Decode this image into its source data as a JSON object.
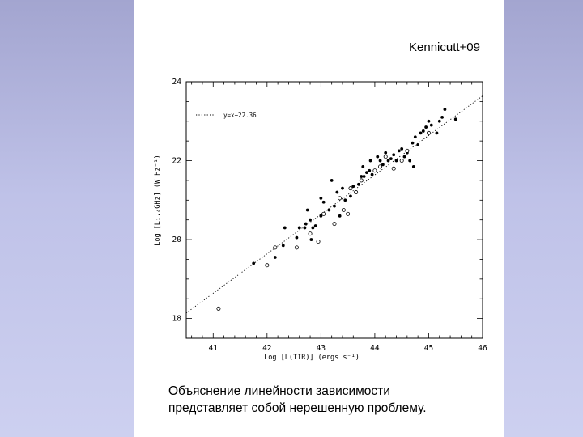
{
  "citation": "Kennicutt+09",
  "caption": {
    "line1": "Объяснение линейности зависимости",
    "line2": "представляет собой нерешенную проблему."
  },
  "colors": {
    "side_panel": "#b8bbe4",
    "page": "#ffffff",
    "ink": "#000000"
  },
  "chart_data": {
    "type": "scatter",
    "xlabel": "Log [L(TIR)] (ergs s⁻¹)",
    "ylabel": "Log [L₁.₄GHz] (W Hz⁻¹)",
    "xlim": [
      40.5,
      46
    ],
    "ylim": [
      17.5,
      24
    ],
    "xticks": [
      41,
      42,
      43,
      44,
      45,
      46
    ],
    "yticks": [
      18,
      20,
      22,
      24
    ],
    "legend": {
      "label": "y=x−22.36",
      "position": "top-left",
      "style": "dotted"
    },
    "fit_line": {
      "slope": 1,
      "intercept": -22.36
    },
    "series": [
      {
        "marker": "filled",
        "points": [
          [
            41.75,
            19.4
          ],
          [
            42.15,
            19.55
          ],
          [
            42.3,
            19.85
          ],
          [
            42.33,
            20.3
          ],
          [
            42.55,
            20.05
          ],
          [
            42.6,
            20.3
          ],
          [
            42.7,
            20.3
          ],
          [
            42.72,
            20.4
          ],
          [
            42.75,
            20.75
          ],
          [
            42.8,
            20.5
          ],
          [
            42.82,
            20.0
          ],
          [
            42.85,
            20.3
          ],
          [
            42.9,
            20.35
          ],
          [
            43.0,
            20.6
          ],
          [
            43.0,
            21.05
          ],
          [
            43.05,
            20.95
          ],
          [
            43.15,
            20.75
          ],
          [
            43.2,
            21.5
          ],
          [
            43.25,
            20.85
          ],
          [
            43.3,
            21.2
          ],
          [
            43.35,
            20.6
          ],
          [
            43.4,
            21.3
          ],
          [
            43.45,
            21.0
          ],
          [
            43.55,
            21.1
          ],
          [
            43.6,
            21.35
          ],
          [
            43.7,
            21.4
          ],
          [
            43.75,
            21.6
          ],
          [
            43.78,
            21.85
          ],
          [
            43.8,
            21.6
          ],
          [
            43.85,
            21.7
          ],
          [
            43.9,
            21.75
          ],
          [
            43.92,
            22.0
          ],
          [
            43.95,
            21.65
          ],
          [
            44.0,
            21.75
          ],
          [
            44.05,
            22.1
          ],
          [
            44.1,
            22.0
          ],
          [
            44.15,
            21.9
          ],
          [
            44.2,
            22.2
          ],
          [
            44.25,
            22.0
          ],
          [
            44.3,
            22.05
          ],
          [
            44.35,
            22.15
          ],
          [
            44.4,
            22.0
          ],
          [
            44.45,
            22.25
          ],
          [
            44.5,
            22.3
          ],
          [
            44.55,
            22.1
          ],
          [
            44.6,
            22.2
          ],
          [
            44.65,
            22.0
          ],
          [
            44.7,
            22.45
          ],
          [
            44.72,
            21.85
          ],
          [
            44.75,
            22.6
          ],
          [
            44.8,
            22.4
          ],
          [
            44.85,
            22.7
          ],
          [
            44.9,
            22.75
          ],
          [
            44.95,
            22.85
          ],
          [
            45.0,
            23.0
          ],
          [
            45.05,
            22.9
          ],
          [
            45.15,
            22.7
          ],
          [
            45.2,
            23.0
          ],
          [
            45.25,
            23.1
          ],
          [
            45.3,
            23.3
          ],
          [
            45.5,
            23.05
          ]
        ]
      },
      {
        "marker": "open",
        "points": [
          [
            41.1,
            18.25
          ],
          [
            42.0,
            19.35
          ],
          [
            42.15,
            19.8
          ],
          [
            42.55,
            19.8
          ],
          [
            42.8,
            20.15
          ],
          [
            42.95,
            19.95
          ],
          [
            43.05,
            20.65
          ],
          [
            43.25,
            20.4
          ],
          [
            43.35,
            21.05
          ],
          [
            43.42,
            20.75
          ],
          [
            43.5,
            20.65
          ],
          [
            43.55,
            21.3
          ],
          [
            43.65,
            21.2
          ],
          [
            43.75,
            21.5
          ],
          [
            44.0,
            21.75
          ],
          [
            44.1,
            21.85
          ],
          [
            44.2,
            22.1
          ],
          [
            44.35,
            21.8
          ],
          [
            44.5,
            22.0
          ],
          [
            44.6,
            22.25
          ],
          [
            45.0,
            22.7
          ]
        ]
      }
    ]
  }
}
